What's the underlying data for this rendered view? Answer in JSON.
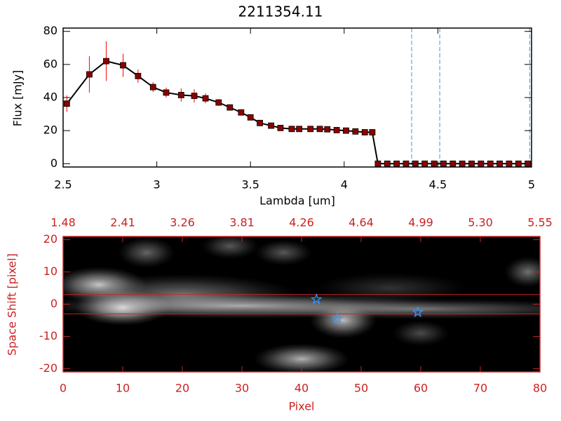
{
  "chart_data": [
    {
      "type": "line",
      "title": "2211354.11",
      "xlabel": "Lambda [um]",
      "ylabel": "Flux [mJy]",
      "xlim": [
        2.5,
        5.0
      ],
      "xticks": [
        2.5,
        3.0,
        3.5,
        4.0,
        4.5,
        5.0
      ],
      "ylim": [
        -2,
        82
      ],
      "yticks": [
        0,
        20,
        40,
        60,
        80
      ],
      "color": "#000000",
      "marker_color": "#8b0000",
      "error_color": "#ff0000",
      "x": [
        2.52,
        2.64,
        2.73,
        2.82,
        2.9,
        2.98,
        3.05,
        3.13,
        3.2,
        3.26,
        3.33,
        3.39,
        3.45,
        3.5,
        3.55,
        3.61,
        3.66,
        3.72,
        3.76,
        3.82,
        3.87,
        3.91,
        3.96,
        4.01,
        4.06,
        4.11,
        4.15,
        4.18,
        4.23,
        4.28,
        4.33,
        4.38,
        4.43,
        4.48,
        4.53,
        4.58,
        4.63,
        4.68,
        4.73,
        4.78,
        4.83,
        4.88,
        4.93,
        4.98
      ],
      "values": [
        36.3,
        54,
        62,
        59.5,
        53,
        46.3,
        43,
        41.5,
        41,
        39.5,
        37,
        34,
        31,
        28,
        24.6,
        23,
        21.6,
        21,
        21,
        21,
        21,
        20.8,
        20.3,
        20,
        19.5,
        19,
        19,
        0,
        0,
        0,
        0,
        0,
        0,
        0,
        0,
        0,
        0,
        0,
        0,
        0,
        0,
        0,
        0,
        0
      ],
      "errors": [
        5,
        11,
        12,
        7,
        4,
        3,
        3,
        4,
        4,
        3,
        2,
        1,
        1,
        1,
        1,
        1,
        1,
        1,
        1,
        1,
        1,
        1,
        1,
        1,
        1,
        1,
        1,
        0,
        0,
        0,
        0,
        0,
        0,
        0,
        0,
        0,
        0,
        0,
        0,
        0,
        0,
        0,
        0,
        0
      ],
      "vlines": [
        4.36,
        4.51,
        4.99
      ],
      "vline_color": "#3399ee"
    },
    {
      "type": "image",
      "xlabel": "Pixel",
      "ylabel": "Space Shift [pixel]",
      "xlim": [
        0,
        80
      ],
      "xticks": [
        0,
        10,
        20,
        30,
        40,
        50,
        60,
        70,
        80
      ],
      "x2ticks": [
        {
          "value": 0,
          "label": "1.48"
        },
        {
          "value": 10,
          "label": "2.41"
        },
        {
          "value": 20,
          "label": "3.26"
        },
        {
          "value": 30,
          "label": "3.81"
        },
        {
          "value": 40,
          "label": "4.26"
        },
        {
          "value": 50,
          "label": "4.64"
        },
        {
          "value": 60,
          "label": "4.99"
        },
        {
          "value": 70,
          "label": "5.30"
        },
        {
          "value": 80,
          "label": "5.55"
        }
      ],
      "ylim": [
        -21,
        21
      ],
      "yticks": [
        -20,
        -10,
        0,
        10,
        20
      ],
      "axis_color": "#cc2222",
      "hlines": [
        3,
        -3
      ],
      "blobs": [
        {
          "x": 10,
          "y": -1,
          "rx": 5,
          "ry": 3.5,
          "intensity": 1.0
        },
        {
          "x": 30,
          "y": -0.5,
          "rx": 22,
          "ry": 2.5,
          "intensity": 0.7
        },
        {
          "x": 60,
          "y": -1.5,
          "rx": 20,
          "ry": 2,
          "intensity": 0.45
        },
        {
          "x": 6,
          "y": 6,
          "rx": 5,
          "ry": 3.5,
          "intensity": 0.8
        },
        {
          "x": 20,
          "y": 3,
          "rx": 12,
          "ry": 4,
          "intensity": 0.45
        },
        {
          "x": 47,
          "y": -5,
          "rx": 3.5,
          "ry": 3.5,
          "intensity": 0.75
        },
        {
          "x": 40,
          "y": -17,
          "rx": 5,
          "ry": 3,
          "intensity": 0.7
        },
        {
          "x": 14,
          "y": 16,
          "rx": 3,
          "ry": 3,
          "intensity": 0.4
        },
        {
          "x": 28,
          "y": 18,
          "rx": 3,
          "ry": 2.5,
          "intensity": 0.35
        },
        {
          "x": 37,
          "y": 16,
          "rx": 3,
          "ry": 2.5,
          "intensity": 0.35
        },
        {
          "x": 78,
          "y": 10,
          "rx": 2.5,
          "ry": 3,
          "intensity": 0.45
        },
        {
          "x": 60,
          "y": -9,
          "rx": 3,
          "ry": 2.5,
          "intensity": 0.3
        },
        {
          "x": 55,
          "y": 5,
          "rx": 8,
          "ry": 3,
          "intensity": 0.2
        }
      ],
      "stars": {
        "x": [
          42.5,
          46,
          59.5
        ],
        "y": [
          1.5,
          -4.5,
          -2.5
        ],
        "color": "#3399ff"
      }
    }
  ]
}
